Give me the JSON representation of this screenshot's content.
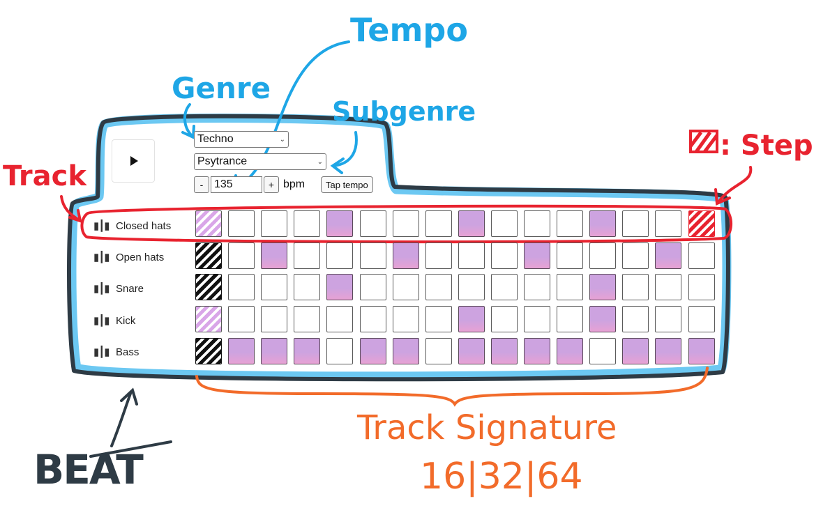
{
  "annotations": {
    "tempo": "Tempo",
    "genre": "Genre",
    "subgenre": "Subgenre",
    "track": "Track",
    "step": ": Step",
    "beat": "BEAT",
    "track_signature": "Track Signature",
    "signature_values": "16|32|64"
  },
  "controls": {
    "play_icon": "play-icon",
    "genre": "Techno",
    "subgenre": "Psytrance",
    "decrement_label": "-",
    "tempo_value": "135",
    "increment_label": "+",
    "bpm_label": "bpm",
    "tap_tempo_label": "Tap tempo"
  },
  "tracks": [
    {
      "name": "Closed hats",
      "icon": "waveform-icon",
      "first_step": "light",
      "steps": [
        0,
        0,
        0,
        0,
        1,
        0,
        0,
        0,
        1,
        0,
        0,
        0,
        1,
        0,
        0,
        0
      ]
    },
    {
      "name": "Open hats",
      "icon": "waveform-icon",
      "first_step": "dark",
      "steps": [
        0,
        0,
        1,
        0,
        0,
        0,
        1,
        0,
        0,
        0,
        1,
        0,
        0,
        0,
        1,
        0
      ]
    },
    {
      "name": "Snare",
      "icon": "waveform-icon",
      "first_step": "dark",
      "steps": [
        0,
        0,
        0,
        0,
        1,
        0,
        0,
        0,
        0,
        0,
        0,
        0,
        1,
        0,
        0,
        0
      ]
    },
    {
      "name": "Kick",
      "icon": "waveform-icon",
      "first_step": "light",
      "steps": [
        0,
        0,
        0,
        0,
        0,
        0,
        0,
        0,
        1,
        0,
        0,
        0,
        1,
        0,
        0,
        0
      ]
    },
    {
      "name": "Bass",
      "icon": "waveform-icon",
      "first_step": "dark",
      "steps": [
        0,
        1,
        1,
        1,
        0,
        1,
        1,
        0,
        1,
        1,
        1,
        1,
        0,
        1,
        1,
        1
      ]
    }
  ],
  "colors": {
    "step_on": "#cda3e0",
    "beat_outline": "#2e3b45",
    "beat_highlight": "#33b5f0",
    "track_highlight": "#e8232f",
    "signature_annotation": "#f26b2a",
    "ui_annotation": "#1ea6e6"
  }
}
